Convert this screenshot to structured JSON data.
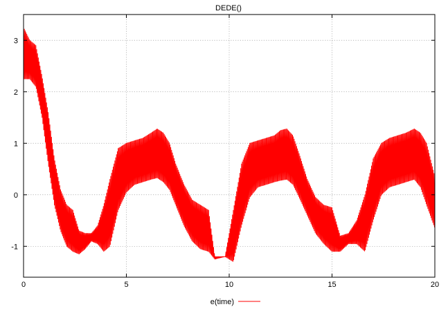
{
  "chart_data": {
    "type": "line",
    "title": "DEDE()",
    "xlabel": "",
    "ylabel": "",
    "xlim": [
      0,
      20
    ],
    "ylim": [
      -1.6,
      3.5
    ],
    "x_ticks": [
      0,
      5,
      10,
      15,
      20
    ],
    "x_tick_labels": [
      "0",
      "5",
      "10",
      "15",
      "20"
    ],
    "y_ticks": [
      -1,
      0,
      1,
      2,
      3
    ],
    "y_tick_labels": [
      "-1",
      "0",
      "1",
      "2",
      "3"
    ],
    "grid": true,
    "legend": {
      "position": "bottom-center"
    },
    "series": [
      {
        "name": "e(time)",
        "color": "#ff0000",
        "style": "rapid oscillation with periodic envelope (period about 6.3)",
        "upper_envelope": [
          [
            0,
            3.25
          ],
          [
            0.3,
            3.0
          ],
          [
            0.6,
            2.9
          ],
          [
            0.9,
            2.3
          ],
          [
            1.2,
            1.6
          ],
          [
            1.5,
            0.7
          ],
          [
            1.8,
            0.1
          ],
          [
            2.1,
            -0.2
          ],
          [
            2.4,
            -0.3
          ],
          [
            2.7,
            -0.7
          ],
          [
            3.0,
            -0.75
          ],
          [
            3.3,
            -0.75
          ],
          [
            3.6,
            -0.6
          ],
          [
            3.9,
            -0.2
          ],
          [
            4.2,
            0.3
          ],
          [
            4.6,
            0.9
          ],
          [
            5.0,
            1.0
          ],
          [
            5.4,
            1.05
          ],
          [
            5.8,
            1.1
          ],
          [
            6.2,
            1.2
          ],
          [
            6.5,
            1.28
          ],
          [
            6.8,
            1.2
          ],
          [
            7.1,
            1.0
          ],
          [
            7.4,
            0.6
          ],
          [
            7.8,
            0.2
          ],
          [
            8.2,
            -0.1
          ],
          [
            8.6,
            -0.2
          ],
          [
            9.0,
            -0.3
          ],
          [
            9.3,
            -1.2
          ],
          [
            9.8,
            -1.2
          ],
          [
            10.2,
            -0.3
          ],
          [
            10.6,
            0.6
          ],
          [
            11.0,
            1.0
          ],
          [
            11.4,
            1.05
          ],
          [
            11.8,
            1.1
          ],
          [
            12.2,
            1.15
          ],
          [
            12.5,
            1.25
          ],
          [
            12.8,
            1.28
          ],
          [
            13.1,
            1.15
          ],
          [
            13.4,
            0.8
          ],
          [
            13.8,
            0.3
          ],
          [
            14.2,
            -0.05
          ],
          [
            14.6,
            -0.2
          ],
          [
            15.0,
            -0.25
          ],
          [
            15.4,
            -0.8
          ],
          [
            15.8,
            -0.75
          ],
          [
            16.2,
            -0.5
          ],
          [
            16.6,
            0.0
          ],
          [
            17.0,
            0.7
          ],
          [
            17.4,
            1.0
          ],
          [
            17.8,
            1.1
          ],
          [
            18.2,
            1.15
          ],
          [
            18.6,
            1.2
          ],
          [
            19.0,
            1.28
          ],
          [
            19.3,
            1.2
          ],
          [
            19.6,
            1.0
          ],
          [
            20,
            0.35
          ]
        ],
        "lower_envelope": [
          [
            0,
            2.25
          ],
          [
            0.3,
            2.25
          ],
          [
            0.6,
            2.1
          ],
          [
            0.9,
            1.5
          ],
          [
            1.2,
            0.6
          ],
          [
            1.5,
            -0.2
          ],
          [
            1.8,
            -0.7
          ],
          [
            2.1,
            -1.0
          ],
          [
            2.4,
            -1.1
          ],
          [
            2.7,
            -1.15
          ],
          [
            3.0,
            -1.05
          ],
          [
            3.3,
            -0.9
          ],
          [
            3.6,
            -0.95
          ],
          [
            3.9,
            -1.1
          ],
          [
            4.2,
            -1.0
          ],
          [
            4.6,
            -0.3
          ],
          [
            5.0,
            0.05
          ],
          [
            5.4,
            0.2
          ],
          [
            5.8,
            0.25
          ],
          [
            6.2,
            0.3
          ],
          [
            6.5,
            0.33
          ],
          [
            6.8,
            0.25
          ],
          [
            7.1,
            0.1
          ],
          [
            7.4,
            -0.2
          ],
          [
            7.8,
            -0.6
          ],
          [
            8.2,
            -0.9
          ],
          [
            8.6,
            -1.05
          ],
          [
            9.0,
            -1.1
          ],
          [
            9.3,
            -1.25
          ],
          [
            9.8,
            -1.2
          ],
          [
            10.2,
            -1.3
          ],
          [
            10.6,
            -0.6
          ],
          [
            11.0,
            -0.05
          ],
          [
            11.4,
            0.15
          ],
          [
            11.8,
            0.2
          ],
          [
            12.2,
            0.25
          ],
          [
            12.5,
            0.28
          ],
          [
            12.8,
            0.3
          ],
          [
            13.1,
            0.2
          ],
          [
            13.4,
            -0.05
          ],
          [
            13.8,
            -0.4
          ],
          [
            14.2,
            -0.75
          ],
          [
            14.6,
            -0.95
          ],
          [
            15.0,
            -1.1
          ],
          [
            15.4,
            -1.1
          ],
          [
            15.8,
            -0.95
          ],
          [
            16.2,
            -0.95
          ],
          [
            16.6,
            -1.1
          ],
          [
            17.0,
            -0.5
          ],
          [
            17.4,
            0.0
          ],
          [
            17.8,
            0.15
          ],
          [
            18.2,
            0.2
          ],
          [
            18.6,
            0.25
          ],
          [
            19.0,
            0.3
          ],
          [
            19.3,
            0.15
          ],
          [
            19.6,
            -0.2
          ],
          [
            20,
            -0.65
          ]
        ]
      }
    ]
  }
}
